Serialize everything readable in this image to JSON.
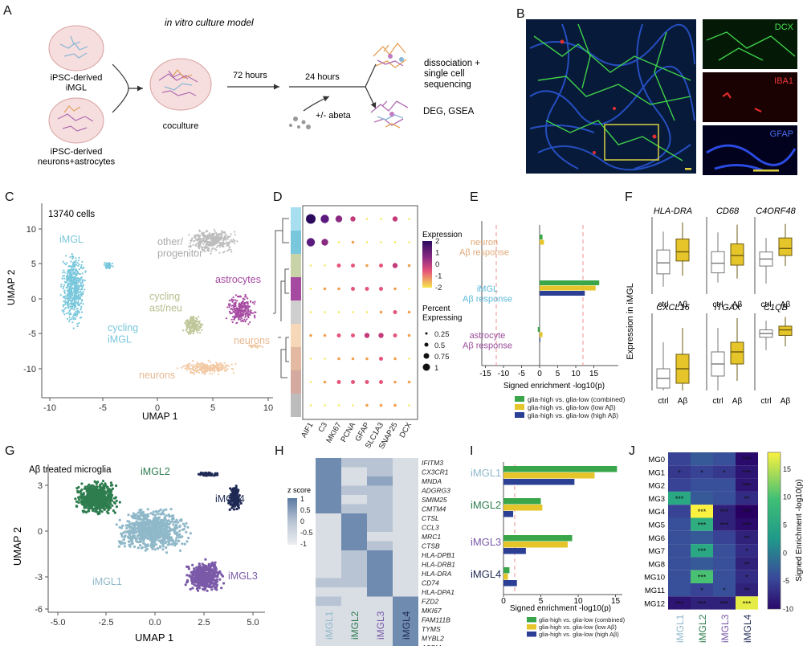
{
  "panel_letters": [
    "A",
    "B",
    "C",
    "D",
    "E",
    "F",
    "G",
    "H",
    "I",
    "J"
  ],
  "colors": {
    "green": "#3aa64a",
    "yellow": "#e6c52b",
    "blue": "#2b3f95",
    "iMGL": "#79c7dc",
    "astro": "#a64aa1",
    "cyc": "#bfc79a",
    "neuron": "#f2c9a3",
    "other": "#bdbdbd",
    "iMGL1": "#8fb8c9",
    "iMGL2": "#2e7d4f",
    "iMGL3": "#7a5aa8",
    "iMGL4": "#1f2a55"
  },
  "panelA": {
    "title": "in vitro culture model",
    "label_imgl": "iPSC-derived\niMGL",
    "label_neuro": "iPSC-derived\nneurons+astrocytes",
    "label_coculture": "coculture",
    "t72": "72 hours",
    "t24": "24 hours",
    "abeta": "+/- abeta",
    "out1": "dissociation +\nsingle cell\nsequencing",
    "out2": "DEG, GSEA"
  },
  "panelB": {
    "dcx": "DCX",
    "iba1": "IBA1",
    "gfap": "GFAP"
  },
  "panelC": {
    "cells": "13740 cells",
    "xlabel": "UMAP 1",
    "ylabel": "UMAP 2",
    "xticks": [
      "-10",
      "-5",
      "0",
      "5",
      "10"
    ],
    "yticks": [
      "10",
      "5",
      "0",
      "-5",
      "-10"
    ],
    "labels": [
      "iMGL",
      "other/\nprogenitor",
      "astrocytes",
      "cycling\nast/neu",
      "cycling\niMGL",
      "neurons",
      "neurons"
    ]
  },
  "panelD": {
    "genes": [
      "AIF1",
      "C3",
      "MKI67",
      "PCNA",
      "GFAP",
      "SLC1A3",
      "SNAP25",
      "DCX"
    ],
    "expr_title": "Expression",
    "expr_ticks": [
      "2",
      "1",
      "0",
      "-1",
      "-2"
    ],
    "pct_title": "Percent\nExpressing",
    "pct_ticks": [
      "0.25",
      "0.5",
      "0.75",
      "1"
    ]
  },
  "panelE": {
    "groups": [
      "neuron\nAβ response",
      "iMGL\nAβ response",
      "astrocyte\nAβ response"
    ],
    "xticks": [
      "-15",
      "-10",
      "-5",
      "0",
      "5",
      "10",
      "15"
    ],
    "xlabel": "Signed enrichment -log10(p)",
    "legend": [
      "glia-high vs. glia-low (combined)",
      "glia-high vs. glia-low (low Aβ)",
      "glia-high vs. glia-low (high Aβ)"
    ]
  },
  "panelF": {
    "ylabel": "Expression in iMGL",
    "genes": [
      "HLA-DRA",
      "CD68",
      "C4ORF48",
      "CXCL16",
      "ITGAX",
      "C1QB"
    ],
    "xcats": [
      "ctrl",
      "Aβ"
    ]
  },
  "panelG": {
    "title": "Aβ treated microglia",
    "xlabel": "UMAP 1",
    "ylabel": "UMAP 2",
    "xticks": [
      "-5.0",
      "-2.5",
      "0.0",
      "2.5",
      "5.0"
    ],
    "yticks": [
      "3",
      "0",
      "-3",
      "-6"
    ],
    "labels": [
      "iMGL2",
      "iMGL4",
      "iMGL1",
      "iMGL3"
    ]
  },
  "panelH": {
    "genes": [
      "IFITM3",
      "CX3CR1",
      "MNDA",
      "ADGRG3",
      "SMIM25",
      "CMTM4",
      "CTSL",
      "CCL3",
      "MRC1",
      "CTSB",
      "HLA-DPB1",
      "HLA-DRB1",
      "HLA-DRA",
      "CD74",
      "HLA-DPA1",
      "FZD2",
      "MKI67",
      "FAM111B",
      "TYMS",
      "MYBL2",
      "ASPM"
    ],
    "clusters": [
      "iMGL1",
      "iMGL2",
      "iMGL3",
      "iMGL4"
    ],
    "z_title": "z score",
    "z_ticks": [
      "1",
      "0.5",
      "0",
      "-0.5",
      "-1"
    ]
  },
  "panelI": {
    "groups": [
      "iMGL1",
      "iMGL2",
      "iMGL3",
      "iMGL4"
    ],
    "xticks": [
      "0",
      "5",
      "10",
      "15"
    ],
    "xlabel": "Signed enrichment -log10(p)",
    "legend": [
      "glia-high vs. glia-low (combined)",
      "glia-high vs. glia-low (low Aβ)",
      "glia-high vs. glia-low (high Aβ)"
    ]
  },
  "panelJ": {
    "rows": [
      "MG0",
      "MG1",
      "MG2",
      "MG3",
      "MG4",
      "MG5",
      "MG6",
      "MG7",
      "MG8",
      "MG10",
      "MG11",
      "MG12"
    ],
    "cols": [
      "iMGL1",
      "iMGL2",
      "iMGL3",
      "iMGL4"
    ],
    "cbar_title": "Signed Enrichment -log10(p)",
    "cbar_ticks": [
      "15",
      "10",
      "5",
      "0",
      "-5",
      "-10"
    ]
  },
  "chart_data": [
    {
      "id": "E",
      "type": "bar",
      "orientation": "horizontal",
      "categories": [
        "neuron Aβ response",
        "iMGL Aβ response",
        "astrocyte Aβ response"
      ],
      "series": [
        {
          "name": "glia-high vs. glia-low (combined)",
          "values": [
            0.8,
            16.5,
            -0.5
          ]
        },
        {
          "name": "glia-high vs. glia-low (low Aβ)",
          "values": [
            1.2,
            15.5,
            0.8
          ]
        },
        {
          "name": "glia-high vs. glia-low (high Aβ)",
          "values": [
            0,
            12.5,
            0.2
          ]
        }
      ],
      "xlim": [
        -20,
        20
      ],
      "xlabel": "Signed enrichment -log10(p)",
      "threshold_lines": [
        -12,
        12
      ]
    },
    {
      "id": "I",
      "type": "bar",
      "orientation": "horizontal",
      "categories": [
        "iMGL1",
        "iMGL2",
        "iMGL3",
        "iMGL4"
      ],
      "series": [
        {
          "name": "glia-high vs. glia-low (combined)",
          "values": [
            15.2,
            5.0,
            9.2,
            0.8
          ]
        },
        {
          "name": "glia-high vs. glia-low (low Aβ)",
          "values": [
            12.2,
            5.2,
            8.6,
            0.6
          ]
        },
        {
          "name": "glia-high vs. glia-low (high Aβ)",
          "values": [
            9.5,
            1.3,
            3.0,
            1.8
          ]
        }
      ],
      "xlim": [
        0,
        16
      ],
      "xlabel": "Signed enrichment -log10(p)",
      "threshold_lines": [
        1.5
      ]
    },
    {
      "id": "J",
      "type": "heatmap",
      "rows": [
        "MG0",
        "MG1",
        "MG2",
        "MG3",
        "MG4",
        "MG5",
        "MG6",
        "MG7",
        "MG8",
        "MG10",
        "MG11",
        "MG12"
      ],
      "cols": [
        "iMGL1",
        "iMGL2",
        "iMGL3",
        "iMGL4"
      ],
      "values": [
        [
          -5,
          -3,
          -4,
          -10
        ],
        [
          -6,
          -5,
          -6,
          -9
        ],
        [
          -5,
          -4,
          -4,
          -9
        ],
        [
          5,
          -3,
          -4,
          -7
        ],
        [
          -5,
          18,
          -8,
          -11
        ],
        [
          -4,
          6,
          -8,
          -10
        ],
        [
          -4,
          -3,
          -5,
          -8
        ],
        [
          -4,
          5,
          -4,
          -7
        ],
        [
          -4,
          -3,
          -4,
          -8
        ],
        [
          -4,
          10,
          -4,
          -7
        ],
        [
          -4,
          -5,
          -4,
          -8
        ],
        [
          -9,
          -8,
          -8,
          17
        ]
      ],
      "stars": [
        [
          "",
          "",
          "",
          "***"
        ],
        [
          "*",
          "*",
          "*",
          "***"
        ],
        [
          "",
          "",
          "",
          "***"
        ],
        [
          "***",
          "",
          "",
          "**"
        ],
        [
          "",
          "***",
          "***",
          "***"
        ],
        [
          "",
          "***",
          "***",
          "***"
        ],
        [
          "",
          "",
          "",
          "**"
        ],
        [
          "",
          "***",
          "",
          "*"
        ],
        [
          "",
          "",
          "",
          "**"
        ],
        [
          "",
          "***",
          "",
          "*"
        ],
        [
          "",
          "*",
          "*",
          "**"
        ],
        [
          "***",
          "***",
          "***",
          "***"
        ]
      ],
      "clim": [
        -10,
        18
      ]
    },
    {
      "id": "F",
      "type": "box",
      "genes": [
        "HLA-DRA",
        "CD68",
        "C4ORF48",
        "CXCL16",
        "ITGAX",
        "C1QB"
      ],
      "boxes": [
        {
          "ctrl": [
            0.4,
            1.1,
            1.7,
            2.4,
            3.4
          ],
          "Ab": [
            1.0,
            1.8,
            2.3,
            3.0,
            3.9
          ],
          "ylim": [
            0,
            4.2
          ]
        },
        {
          "ctrl": [
            0.3,
            0.55,
            0.8,
            1.1,
            1.6
          ],
          "Ab": [
            0.4,
            0.75,
            1.0,
            1.3,
            1.8
          ],
          "ylim": [
            0,
            2
          ]
        },
        {
          "ctrl": [
            0.3,
            0.8,
            1.0,
            1.2,
            1.6
          ],
          "Ab": [
            0.8,
            1.1,
            1.3,
            1.6,
            2.0
          ],
          "ylim": [
            0,
            2.2
          ]
        },
        {
          "ctrl": [
            0,
            0.05,
            0.25,
            0.45,
            1.0
          ],
          "Ab": [
            0,
            0.15,
            0.45,
            0.75,
            1.3
          ],
          "ylim": [
            0,
            1.6
          ]
        },
        {
          "ctrl": [
            0,
            0.3,
            0.55,
            0.8,
            1.3
          ],
          "Ab": [
            0.2,
            0.55,
            0.8,
            1.0,
            1.5
          ],
          "ylim": [
            0,
            1.6
          ]
        },
        {
          "ctrl": [
            2.2,
            2.9,
            3.1,
            3.3,
            3.8
          ],
          "Ab": [
            2.4,
            3.0,
            3.3,
            3.5,
            4.0
          ],
          "ylim": [
            0,
            4.2
          ]
        }
      ]
    }
  ]
}
